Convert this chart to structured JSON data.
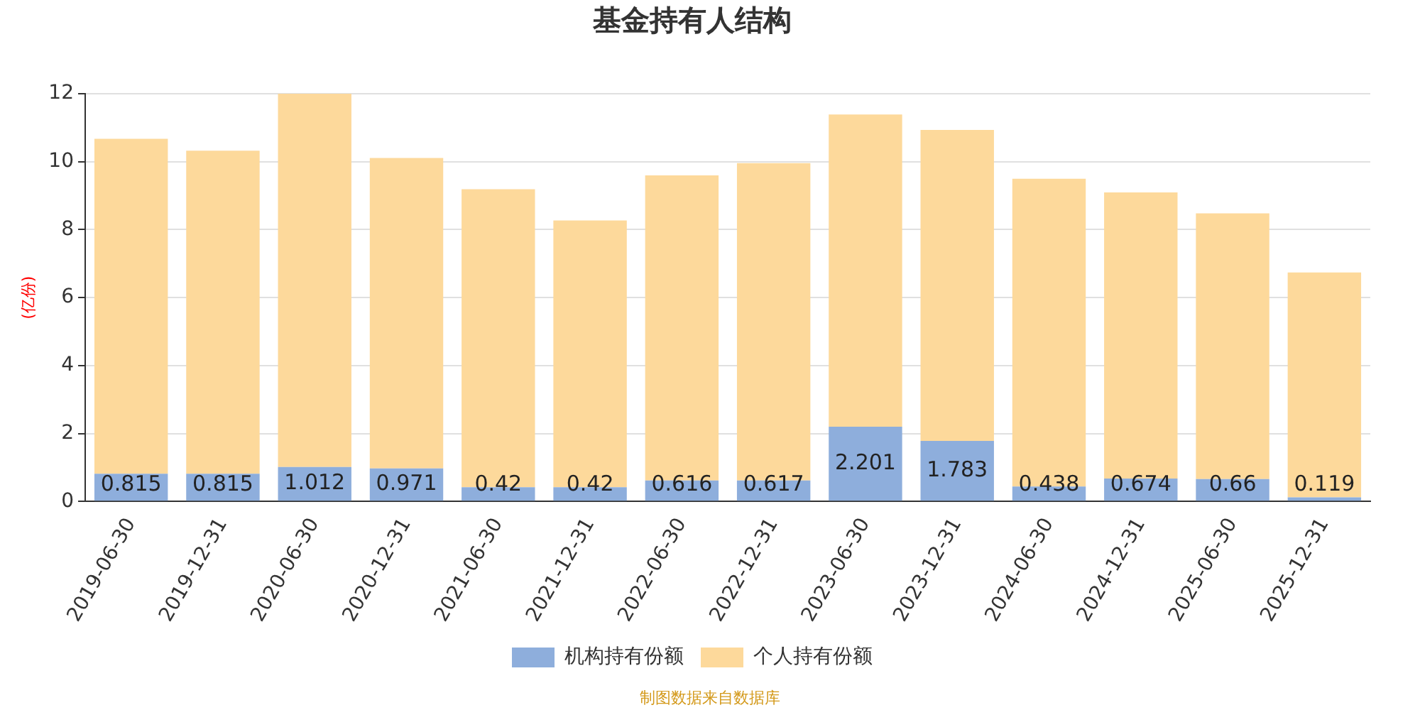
{
  "chart_data": {
    "type": "bar",
    "title": "基金持有人结构",
    "ylabel": "(亿份)",
    "categories": [
      "2019-06-30",
      "2019-12-31",
      "2020-06-30",
      "2020-12-31",
      "2021-06-30",
      "2021-12-31",
      "2022-06-30",
      "2022-12-31",
      "2023-06-30",
      "2023-12-31",
      "2024-06-30",
      "2024-12-31",
      "2025-06-30",
      "2025-12-31"
    ],
    "series": [
      {
        "name": "机构持有份额",
        "color": "#8eaedc",
        "values": [
          0.815,
          0.815,
          1.012,
          0.971,
          0.42,
          0.42,
          0.616,
          0.617,
          2.201,
          1.783,
          0.438,
          0.674,
          0.66,
          0.119
        ],
        "value_labels": [
          "0.815",
          "0.815",
          "1.012",
          "0.971",
          "0.42",
          "0.42",
          "0.616",
          "0.617",
          "2.201",
          "1.783",
          "0.438",
          "0.674",
          "0.66",
          "0.119"
        ]
      },
      {
        "name": "个人持有份额",
        "color": "#fdd99b",
        "values": [
          9.86,
          9.51,
          10.99,
          9.14,
          8.77,
          7.85,
          8.98,
          9.34,
          9.19,
          9.15,
          9.06,
          8.42,
          7.82,
          6.62
        ]
      }
    ],
    "stacked": true,
    "ylim": [
      0,
      12
    ],
    "yticks": [
      0,
      2,
      4,
      6,
      8,
      10,
      12
    ],
    "grid": "y",
    "legend": "bottom",
    "annotations": [
      "制图数据来自数据库"
    ]
  }
}
